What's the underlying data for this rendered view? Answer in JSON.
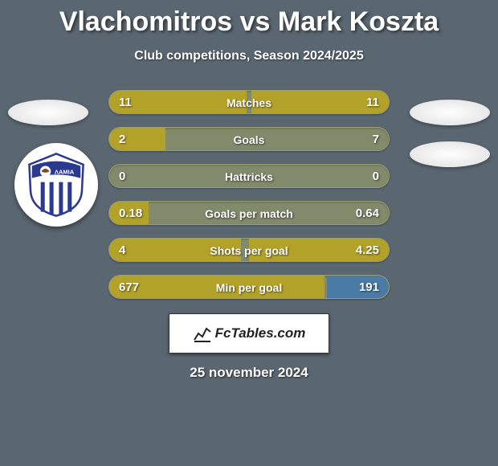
{
  "title": "Vlachomitros vs Mark Koszta",
  "subtitle": "Club competitions, Season 2024/2025",
  "date": "25 november 2024",
  "brand": "FcTables.com",
  "colors": {
    "left_fill": "#b3a22a",
    "right_fill": "#4a7ba6",
    "row_bg": "#818a6b",
    "page_bg": "#5a6670"
  },
  "badge": {
    "top_band": "#2b3a8f",
    "stripe": "#2b3a8f",
    "text": "ΛΑΜΙΑ"
  },
  "stats": [
    {
      "label": "Matches",
      "left_val": "11",
      "right_val": "11",
      "left_pct": 49,
      "right_pct": 49,
      "right_color": "olive"
    },
    {
      "label": "Goals",
      "left_val": "2",
      "right_val": "7",
      "left_pct": 20,
      "right_pct": 0,
      "right_color": "olive"
    },
    {
      "label": "Hattricks",
      "left_val": "0",
      "right_val": "0",
      "left_pct": 0,
      "right_pct": 0,
      "right_color": "olive"
    },
    {
      "label": "Goals per match",
      "left_val": "0.18",
      "right_val": "0.64",
      "left_pct": 14,
      "right_pct": 0,
      "right_color": "olive"
    },
    {
      "label": "Shots per goal",
      "left_val": "4",
      "right_val": "4.25",
      "left_pct": 47,
      "right_pct": 50,
      "right_color": "olive"
    },
    {
      "label": "Min per goal",
      "left_val": "677",
      "right_val": "191",
      "left_pct": 77,
      "right_pct": 22,
      "right_color": "blue"
    }
  ]
}
